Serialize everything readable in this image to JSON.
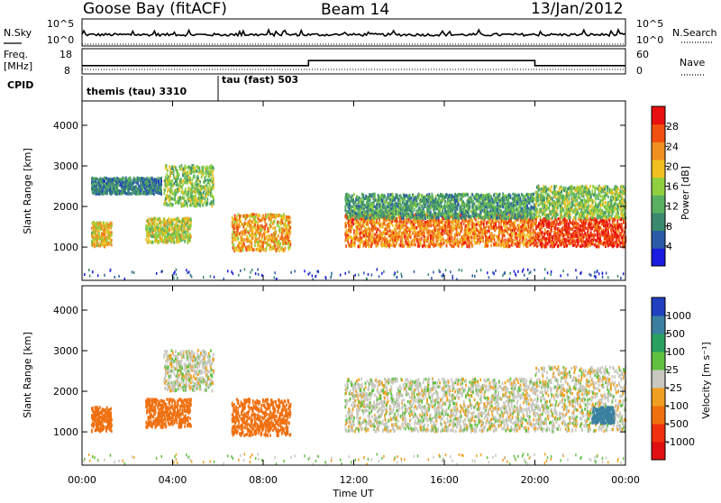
{
  "header": {
    "station": "Goose Bay (fitACF)",
    "beam": "Beam 14",
    "date": "13/Jan/2012"
  },
  "noise_panel": {
    "left_label": "N.Sky",
    "right_label": "N.Search",
    "left_ticks": [
      "10^5",
      "10^0"
    ],
    "right_ticks": [
      "10^5",
      "10^0"
    ]
  },
  "freq_panel": {
    "left_label_1": "Freq.",
    "left_label_2": "[MHz]",
    "right_label": "Nave",
    "left_ticks": [
      "18",
      "8"
    ],
    "right_ticks": [
      "60",
      "0"
    ]
  },
  "cpid": {
    "label": "CPID",
    "segments": [
      {
        "text": "themis (tau) 3310",
        "start_hour": 0
      },
      {
        "text": "tau (fast) 503",
        "start_hour": 6
      }
    ]
  },
  "x_axis": {
    "label": "Time UT",
    "ticks": [
      "00:00",
      "04:00",
      "08:00",
      "12:00",
      "16:00",
      "20:00",
      "00:00"
    ],
    "range_hours": [
      0,
      24
    ]
  },
  "range_axis": {
    "label": "Slant Range [km]",
    "ticks": [
      "1000",
      "2000",
      "3000",
      "4000"
    ],
    "range_km": [
      180,
      4600
    ]
  },
  "power_colorbar": {
    "title": "Power [dB]",
    "ticks": [
      "4",
      "8",
      "12",
      "16",
      "20",
      "24",
      "28"
    ],
    "colors": [
      "#1a1ae0",
      "#2a5aa8",
      "#3a8a70",
      "#58b060",
      "#90d040",
      "#f0c020",
      "#f09020",
      "#f05010",
      "#e81010"
    ]
  },
  "velocity_colorbar": {
    "title": "Velocity [m s⁻¹]",
    "ticks": [
      "1000",
      "500",
      "100",
      "25",
      "-25",
      "-100",
      "-500",
      "-1000"
    ],
    "colors": [
      "#2040c0",
      "#3a80a0",
      "#2aa060",
      "#60c040",
      "#c8c8c0",
      "#f0a020",
      "#f07010",
      "#f03010",
      "#e01010"
    ]
  },
  "chart_data": {
    "type": "heatmap",
    "panels": [
      {
        "name": "power",
        "quantity": "Power [dB]",
        "regions": [
          {
            "t0": 0.4,
            "t1": 3.5,
            "r0": 2300,
            "r1": 2700,
            "value": 8
          },
          {
            "t0": 0.4,
            "t1": 1.3,
            "r0": 1000,
            "r1": 1600,
            "value": 18
          },
          {
            "t0": 2.8,
            "t1": 4.8,
            "r0": 1100,
            "r1": 1700,
            "value": 16
          },
          {
            "t0": 3.6,
            "t1": 5.8,
            "r0": 2000,
            "r1": 3000,
            "value": 14
          },
          {
            "t0": 6.6,
            "t1": 9.2,
            "r0": 900,
            "r1": 1800,
            "value": 20
          },
          {
            "t0": 11.6,
            "t1": 20.0,
            "r0": 1000,
            "r1": 1800,
            "value": 22
          },
          {
            "t0": 11.6,
            "t1": 20.0,
            "r0": 1700,
            "r1": 2300,
            "value": 10
          },
          {
            "t0": 20.0,
            "t1": 24.0,
            "r0": 1000,
            "r1": 1700,
            "value": 26
          },
          {
            "t0": 20.0,
            "t1": 24.0,
            "r0": 1700,
            "r1": 2500,
            "value": 14
          }
        ]
      },
      {
        "name": "velocity",
        "quantity": "Velocity [m s-1]",
        "regions": [
          {
            "t0": 0.4,
            "t1": 1.3,
            "r0": 1000,
            "r1": 1600,
            "value": -100
          },
          {
            "t0": 2.8,
            "t1": 4.8,
            "r0": 1100,
            "r1": 1800,
            "value": -150
          },
          {
            "t0": 3.6,
            "t1": 5.8,
            "r0": 2000,
            "r1": 3000,
            "value": 0
          },
          {
            "t0": 6.6,
            "t1": 9.2,
            "r0": 900,
            "r1": 1800,
            "value": -120
          },
          {
            "t0": 11.6,
            "t1": 20.0,
            "r0": 1000,
            "r1": 2300,
            "value": 0
          },
          {
            "t0": 20.0,
            "t1": 24.0,
            "r0": 1000,
            "r1": 2600,
            "value": 0
          },
          {
            "t0": 22.5,
            "t1": 23.5,
            "r0": 1200,
            "r1": 1600,
            "value": 500
          }
        ]
      }
    ],
    "frequency_mhz": [
      {
        "t0": 0,
        "t1": 24,
        "value": 10.5
      }
    ],
    "nave": [
      {
        "t0": 0,
        "t1": 10,
        "value": 18
      },
      {
        "t0": 10,
        "t1": 20,
        "value": 32
      },
      {
        "t0": 20,
        "t1": 24,
        "value": 18
      }
    ]
  }
}
